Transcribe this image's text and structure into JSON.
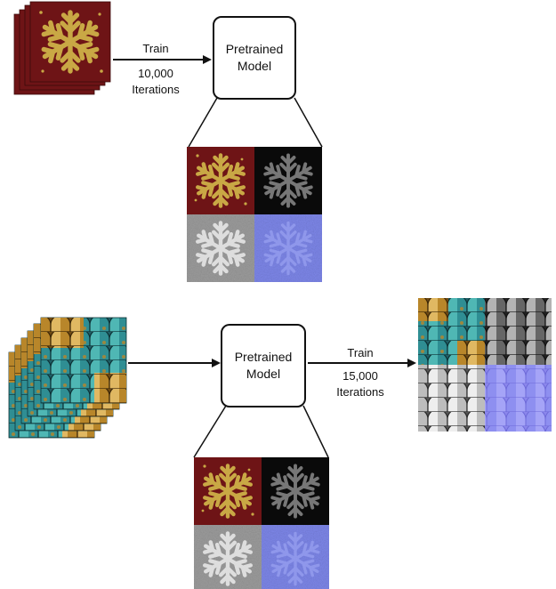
{
  "stage1": {
    "model_line1": "Pretrained",
    "model_line2": "Model",
    "edge_line1": "Train",
    "edge_line2": "10,000",
    "edge_line3": "Iterations"
  },
  "stage2": {
    "model_line1": "Pretrained",
    "model_line2": "Model",
    "edge_line1": "Train",
    "edge_line2": "15,000",
    "edge_line3": "Iterations"
  },
  "colors": {
    "snow_base": "#6e1416",
    "snow_gold": "#c9a845",
    "scale_teal": "#2f8e93",
    "scale_gold": "#b8862a",
    "normal_blue": "#7d86e8"
  }
}
